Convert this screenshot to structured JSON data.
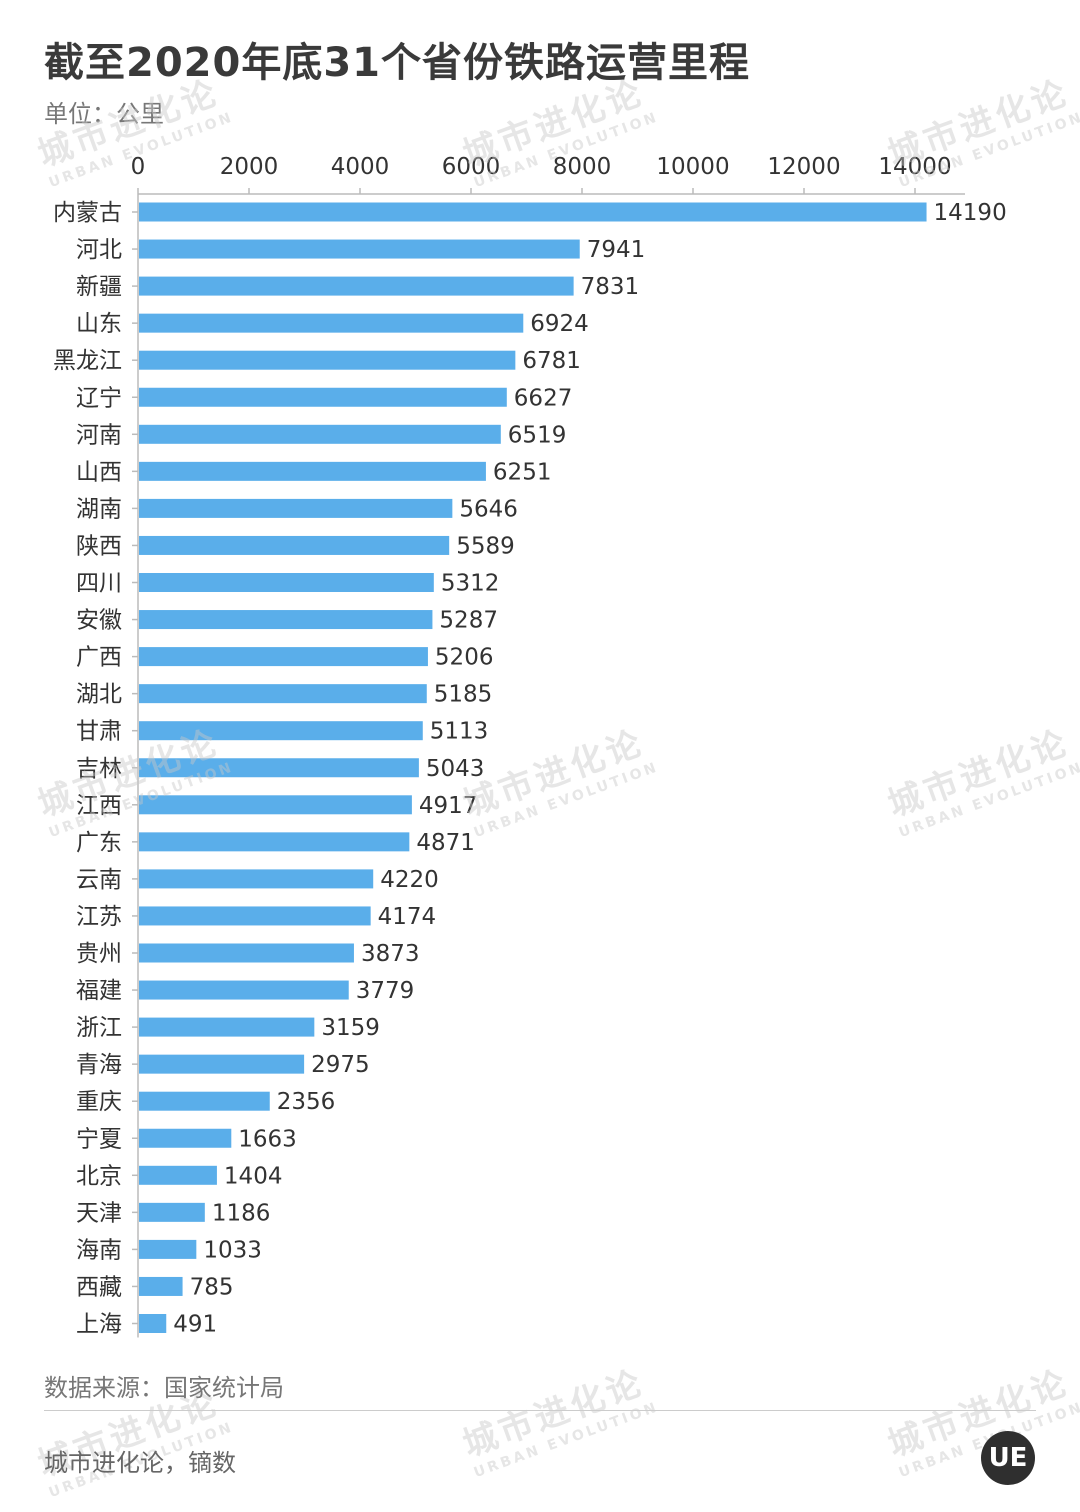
{
  "title": "截至2020年底31个省份铁路运营里程",
  "unit": "单位：公里",
  "source": "数据来源：国家统计局",
  "credit": "城市进化论，镝数",
  "watermark": {
    "cn": "城市进化论",
    "en": "URBAN EVOLUTION"
  },
  "logo_text": "UE",
  "colors": {
    "bar": "#5aaeea",
    "axis": "#bbbbbb",
    "text": "#333333"
  },
  "chart_data": {
    "type": "bar",
    "orientation": "horizontal",
    "title": "截至2020年底31个省份铁路运营里程",
    "xlabel": "",
    "ylabel": "",
    "unit": "单位：公里",
    "xlim": [
      0,
      14000
    ],
    "ticks": [
      0,
      2000,
      4000,
      6000,
      8000,
      10000,
      12000,
      14000
    ],
    "axis_position": "top",
    "grid": false,
    "categories": [
      "内蒙古",
      "河北",
      "新疆",
      "山东",
      "黑龙江",
      "辽宁",
      "河南",
      "山西",
      "湖南",
      "陕西",
      "四川",
      "安徽",
      "广西",
      "湖北",
      "甘肃",
      "吉林",
      "江西",
      "广东",
      "云南",
      "江苏",
      "贵州",
      "福建",
      "浙江",
      "青海",
      "重庆",
      "宁夏",
      "北京",
      "天津",
      "海南",
      "西藏",
      "上海"
    ],
    "values": [
      14190,
      7941,
      7831,
      6924,
      6781,
      6627,
      6519,
      6251,
      5646,
      5589,
      5312,
      5287,
      5206,
      5185,
      5113,
      5043,
      4917,
      4871,
      4220,
      4174,
      3873,
      3779,
      3159,
      2975,
      2356,
      1663,
      1404,
      1186,
      1033,
      785,
      491
    ]
  }
}
